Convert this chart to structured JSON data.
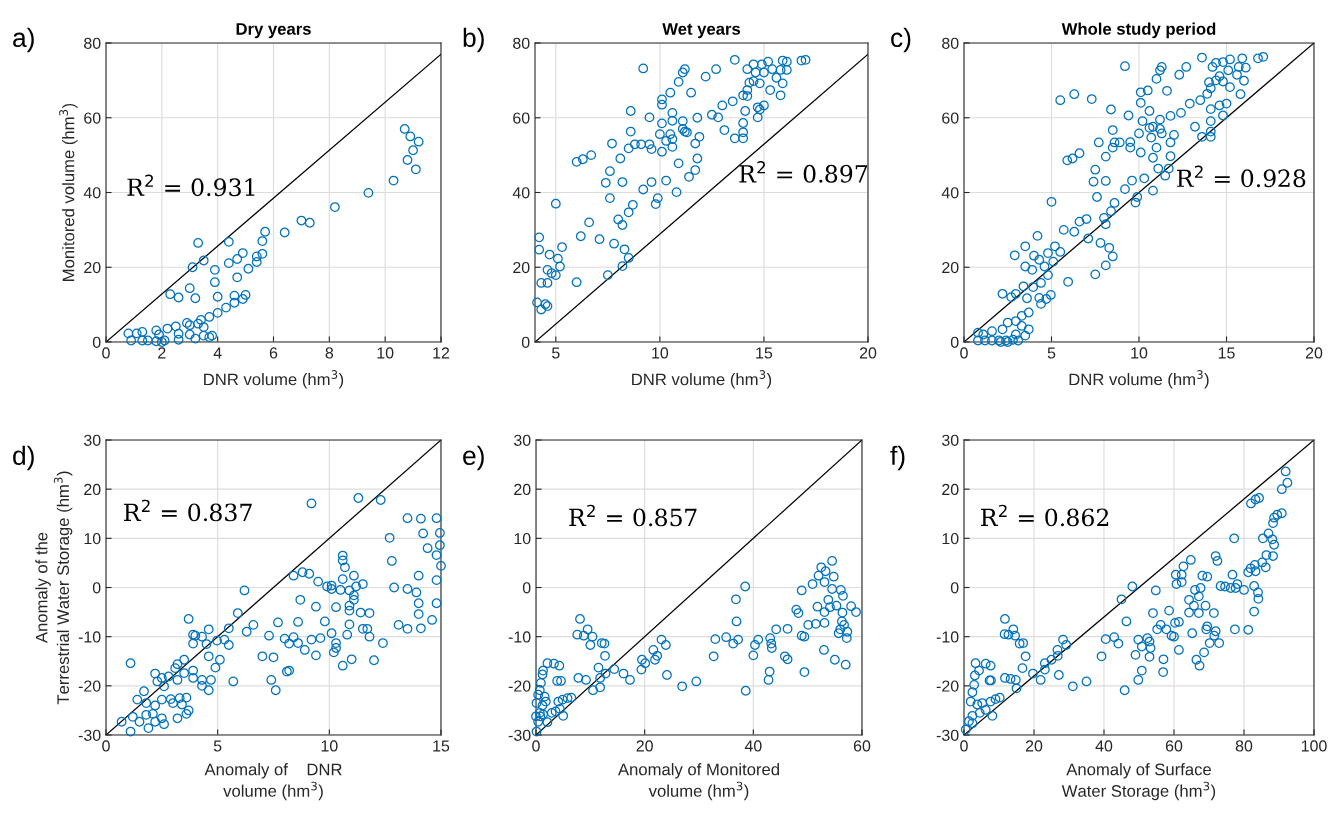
{
  "chart_data": [
    {
      "type": "scatter",
      "title": "Dry years",
      "xlabel": "DNR volume (hm$^{3}$)",
      "ylabel": "Monitored volume (hm$^{3}$)",
      "annotations": [
        "a)",
        "R$^{2}$ = 0.931"
      ],
      "xlim": [
        0,
        12
      ],
      "ylim": [
        0,
        80
      ],
      "xticks": [
        0,
        2,
        4,
        6,
        8,
        10,
        12
      ],
      "yticks": [
        0,
        20,
        40,
        60,
        80
      ],
      "grid": true,
      "series": [
        {
          "marker": "circle",
          "color": "#0072bd",
          "x": [
            10.7,
            10.9,
            11.2,
            11.0,
            10.8,
            11.1,
            10.3,
            9.4,
            8.2,
            7.0,
            7.3,
            6.4,
            5.7,
            5.6,
            5.6,
            5.4,
            5.4,
            5.1,
            4.9,
            4.7,
            4.4,
            4.4,
            4.7,
            3.9,
            3.9,
            4.0,
            4.6,
            5.0,
            4.9,
            4.6,
            4.3,
            4.0,
            3.7,
            3.3,
            3.1,
            3.5,
            3.0,
            3.2,
            2.3,
            2.6,
            3.4,
            3.3,
            2.9,
            3.0,
            3.5,
            2.5,
            2.2,
            1.8,
            1.3,
            1.1,
            0.8,
            3.0,
            3.5,
            3.8,
            2.6,
            1.9,
            0.9,
            1.3,
            1.5,
            1.8,
            2.1,
            2.6,
            3.2,
            3.7,
            2.0
          ],
          "values": [
            57,
            55,
            53.6,
            51.3,
            48.7,
            46.2,
            43.2,
            39.9,
            36.1,
            32.5,
            31.9,
            29.3,
            29.5,
            27.0,
            23.6,
            22.9,
            21.4,
            19.6,
            23.8,
            22.2,
            26.8,
            21.1,
            17.3,
            19.3,
            16.0,
            12.1,
            12.4,
            12.6,
            11.5,
            10.5,
            9.2,
            7.8,
            6.7,
            26.5,
            20.0,
            21.8,
            14.4,
            11.7,
            12.8,
            11.9,
            5.9,
            4.9,
            5.1,
            4.5,
            4.0,
            4.2,
            3.6,
            3.1,
            2.7,
            2.3,
            2.3,
            2.0,
            1.7,
            1.7,
            2.2,
            2.0,
            0.4,
            0.4,
            0.4,
            0.2,
            0.4,
            0.6,
            0.9,
            1.3,
            0.0
          ]
        },
        {
          "type": "line",
          "color": "#000000",
          "x": [
            0,
            12
          ],
          "values": [
            0,
            77
          ]
        }
      ]
    },
    {
      "type": "scatter",
      "title": "Wet years",
      "xlabel": "DNR volume (hm$^{3}$)",
      "annotations": [
        "b)",
        "R$^{2}$ = 0.897"
      ],
      "xlim": [
        4,
        20
      ],
      "ylim": [
        0,
        80
      ],
      "xticks": [
        5,
        10,
        15,
        20
      ],
      "yticks": [
        0,
        20,
        40,
        60,
        80
      ],
      "grid": true,
      "series": [
        {
          "marker": "circle",
          "color": "#0072bd",
          "x": [
            16.8,
            17.0,
            15.9,
            16.1,
            15.2,
            14.9,
            14.5,
            13.6,
            14.2,
            15.4,
            15.8,
            16.1,
            15.0,
            14.6,
            12.7,
            12.2,
            11.2,
            11.1,
            10.9,
            9.2,
            15.6,
            15.9,
            14.8,
            14.5,
            14.3,
            15.3,
            14.2,
            14.0,
            14.2,
            15.8,
            13.5,
            13.0,
            15.0,
            14.7,
            14.8,
            14.1,
            14.7,
            12.5,
            12.8,
            11.8,
            11.5,
            10.5,
            10.1,
            10.1,
            8.6,
            9.5,
            10.6,
            10.6,
            10.1,
            11.1,
            11.1,
            11.2,
            11.3,
            10.0,
            10.5,
            10.3,
            10.6,
            10.6,
            10.1,
            11.9,
            11.7,
            13.1,
            13.6,
            14.0,
            14.0,
            14.0,
            8.6,
            7.7,
            8.5,
            8.8,
            9.1,
            9.5,
            9.6,
            8.1,
            6.7,
            6.3,
            6.0,
            7.6,
            7.4,
            8.2,
            9.6,
            10.3,
            10.9,
            11.8,
            11.7,
            11.4,
            10.8,
            9.2,
            9.9,
            9.8,
            8.7,
            8.5,
            7.6,
            8.0,
            8.2,
            6.6,
            7.1,
            6.2,
            7.8,
            8.3,
            8.5,
            8.2,
            7.5,
            6.0,
            5.0,
            5.3,
            4.2,
            4.2,
            4.7,
            5.1,
            5.2,
            4.6,
            4.8,
            5.0,
            4.3,
            4.6,
            4.1,
            4.3,
            4.5,
            4.6
          ],
          "values": [
            75.3,
            75.5,
            75.3,
            75.0,
            75.0,
            74.3,
            74.3,
            75.5,
            73.0,
            73.0,
            72.8,
            72.8,
            72.1,
            72.1,
            73.0,
            71.0,
            73.0,
            72.1,
            69.6,
            73.2,
            70.7,
            69.2,
            69.2,
            69.8,
            69.4,
            67.4,
            67.4,
            66.0,
            65.8,
            66.0,
            64.4,
            63.3,
            63.3,
            62.8,
            62.2,
            61.8,
            60.1,
            60.8,
            60.1,
            60.0,
            66.7,
            66.7,
            64.9,
            63.5,
            61.8,
            60.1,
            61.3,
            59.2,
            58.5,
            59.1,
            57.0,
            56.3,
            56.1,
            55.6,
            55.6,
            53.8,
            54.3,
            52.2,
            50.9,
            54.9,
            53.1,
            56.7,
            54.5,
            56.1,
            54.5,
            58.6,
            56.3,
            53.1,
            51.8,
            52.9,
            52.9,
            52.9,
            51.6,
            49.1,
            50.0,
            48.9,
            48.2,
            45.7,
            42.6,
            42.8,
            42.8,
            43.2,
            47.8,
            49.1,
            46.0,
            44.2,
            40.1,
            40.8,
            38.5,
            36.9,
            36.7,
            34.7,
            38.5,
            32.8,
            31.3,
            32.0,
            27.5,
            28.3,
            26.3,
            24.8,
            22.5,
            20.3,
            17.9,
            16.0,
            37.0,
            25.4,
            28.0,
            24.7,
            23.4,
            22.3,
            20.2,
            19.3,
            18.4,
            17.9,
            15.8,
            15.8,
            10.6,
            8.7,
            10.1,
            9.6
          ]
        },
        {
          "type": "line",
          "color": "#000000",
          "x": [
            4,
            20
          ],
          "values": [
            0,
            77
          ]
        }
      ]
    },
    {
      "type": "scatter",
      "title": "Whole study period",
      "xlabel": "DNR volume (hm$^{3}$)",
      "annotations": [
        "c)",
        "R$^{2}$ = 0.928"
      ],
      "xlim": [
        0,
        20
      ],
      "ylim": [
        0,
        80
      ],
      "xticks": [
        0,
        5,
        10,
        15,
        20
      ],
      "yticks": [
        0,
        20,
        40,
        60,
        80
      ],
      "grid": true,
      "series": [
        {
          "marker": "circle",
          "color": "#0072bd",
          "x": [
            17.1,
            16.8,
            15.9,
            15.2,
            14.8,
            14.4,
            13.6,
            16.1,
            15.7,
            15.1,
            14.2,
            12.7,
            12.3,
            11.3,
            11.2,
            11.0,
            9.2,
            15.6,
            16.0,
            14.6,
            14.4,
            14.0,
            14.8,
            15.2,
            14.1,
            15.8,
            13.9,
            13.5,
            12.9,
            15.0,
            14.6,
            14.1,
            14.8,
            14.1,
            14.1,
            14.1,
            13.6,
            13.2,
            12.4,
            11.8,
            11.2,
            10.6,
            10.2,
            10.6,
            10.8,
            11.2,
            10.0,
            10.7,
            11.3,
            12.0,
            11.8,
            11.0,
            10.8,
            11.8,
            11.1,
            11.7,
            11.5,
            10.8,
            10.3,
            10.1,
            9.5,
            9.5,
            8.6,
            8.9,
            8.5,
            8.4,
            9.4,
            10.1,
            10.1,
            10.5,
            11.6,
            8.5,
            7.7,
            8.1,
            7.5,
            7.4,
            8.1,
            7.6,
            6.6,
            6.2,
            5.9,
            5.5,
            6.3,
            7.3,
            9.6,
            9.2,
            9.9,
            9.8,
            8.6,
            8.4,
            8.0,
            8.1,
            7.0,
            6.6,
            6.3,
            5.7,
            7.1,
            7.8,
            8.3,
            8.5,
            8.1,
            7.5,
            5.95,
            5.0,
            4.2,
            3.5,
            2.9,
            4.0,
            4.8,
            5.2,
            5.5,
            5.1,
            4.3,
            3.5,
            3.9,
            4.6,
            4.8,
            4.4,
            3.95,
            3.4,
            2.96,
            2.2,
            2.7,
            3.6,
            4.3,
            4.96,
            4.7,
            4.4,
            3.7,
            3.3,
            2.96,
            2.5,
            3.3,
            3.7,
            2.2,
            1.6,
            0.8,
            1.1,
            2.96,
            3.5,
            0.8,
            1.2,
            1.6,
            2.0,
            2.4,
            2.8,
            3.1,
            2.1,
            2.5
          ],
          "values": [
            76.3,
            75.9,
            75.9,
            75.6,
            74.9,
            74.7,
            76.1,
            73.4,
            73.6,
            72.7,
            73.6,
            73.6,
            71.5,
            73.6,
            72.7,
            70.4,
            73.8,
            71.5,
            69.9,
            71.1,
            70.0,
            69.5,
            69.7,
            68.2,
            67.9,
            66.3,
            66.4,
            64.7,
            63.8,
            63.8,
            63.3,
            62.3,
            60.6,
            59.1,
            56.3,
            54.9,
            54.9,
            57.6,
            61.3,
            60.5,
            59.5,
            61.8,
            59.1,
            57.3,
            57.6,
            57.0,
            55.8,
            54.7,
            55.8,
            55.4,
            53.4,
            52.0,
            49.3,
            49.7,
            46.4,
            46.4,
            44.5,
            40.5,
            43.8,
            50.7,
            53.5,
            52.0,
            53.4,
            53.4,
            52.0,
            62.2,
            60.6,
            66.8,
            64.0,
            67.3,
            67.2,
            56.7,
            53.4,
            49.6,
            46.1,
            42.9,
            43.1,
            38.8,
            50.5,
            49.1,
            48.6,
            64.7,
            66.3,
            65.0,
            43.2,
            40.9,
            38.8,
            37.3,
            37.2,
            35.0,
            33.2,
            31.5,
            32.9,
            32.2,
            29.5,
            30.0,
            27.7,
            26.5,
            25.2,
            22.9,
            20.5,
            18.1,
            16.1,
            37.5,
            28.4,
            25.6,
            23.2,
            23.1,
            23.8,
            25.6,
            24.1,
            21.5,
            22.0,
            20.2,
            19.3,
            20.2,
            17.9,
            15.8,
            14.7,
            14.9,
            12.9,
            12.9,
            12.0,
            11.7,
            11.8,
            12.6,
            11.5,
            10.2,
            7.9,
            7.0,
            5.6,
            5.2,
            4.3,
            3.4,
            3.4,
            2.9,
            2.5,
            2.0,
            2.0,
            1.7,
            0.4,
            0.4,
            0.4,
            0.4,
            0.4,
            0.6,
            0.4,
            0.0,
            0.0
          ]
        },
        {
          "type": "line",
          "color": "#000000",
          "x": [
            0,
            20
          ],
          "values": [
            0,
            80
          ]
        }
      ]
    },
    {
      "type": "scatter",
      "xlabel": "Anomaly of    DNR\nvolume (hm$^{3}$)",
      "ylabel": "Anomaly of the\nTerrestrial Water Storage (hm$^{3}$)",
      "annotations": [
        "d)",
        "R$^{2}$ = 0.837"
      ],
      "xlim": [
        0,
        15
      ],
      "ylim": [
        -30,
        30
      ],
      "xticks": [
        0,
        5,
        10,
        15
      ],
      "yticks": [
        -30,
        -20,
        -10,
        0,
        10,
        20,
        30
      ],
      "grid": true,
      "series": [
        {
          "marker": "circle",
          "color": "#0072bd",
          "x": [
            14.8,
            14.1,
            14.95,
            14.4,
            14.95,
            14.8,
            15.0,
            14.8,
            14.8,
            14.6,
            9.2,
            11.3,
            12.3,
            13.5,
            14.2,
            12.7,
            12.8,
            10.6,
            10.6,
            10.7,
            11.1,
            10.6,
            11.5,
            14.0,
            12.9,
            13.5,
            13.9,
            14.0,
            14.0,
            14.1,
            13.1,
            13.5,
            8.4,
            8.8,
            9.1,
            9.5,
            9.9,
            10.1,
            10.1,
            10.5,
            10.9,
            11.2,
            11.1,
            11.1,
            10.9,
            10.9,
            10.3,
            11.4,
            11.8,
            8.7,
            9.4,
            9.8,
            10.9,
            11.5,
            11.7,
            11.8,
            12.4,
            10.8,
            10.1,
            10.3,
            10.3,
            10.2,
            11.0,
            10.6,
            12.0,
            9.2,
            9.6,
            8.9,
            8.4,
            8.6,
            8.2,
            8.0,
            8.6,
            7.7,
            7.3,
            6.6,
            6.3,
            7.0,
            7.5,
            8.1,
            8.2,
            7.4,
            7.6,
            9.4,
            6.2,
            5.9,
            5.5,
            5.3,
            5.5,
            5.1,
            4.97,
            4.6,
            4.6,
            4.9,
            4.7,
            4.6,
            4.3,
            4.3,
            5.7,
            3.7,
            3.9,
            4.0,
            4.3,
            3.9,
            4.5,
            3.9,
            3.9,
            3.5,
            3.2,
            3.1,
            3.5,
            3.2,
            2.8,
            2.6,
            2.3,
            2.2,
            2.5,
            1.1,
            1.7,
            1.4,
            1.8,
            2.2,
            2.5,
            2.9,
            3.0,
            3.4,
            3.3,
            3.6,
            3.7,
            3.6,
            3.2,
            2.5,
            2.1,
            1.8,
            1.5,
            1.2,
            1.9,
            1.1,
            0.7,
            2.6,
            2.2
          ],
          "values": [
            14.1,
            14.0,
            11.1,
            8.0,
            8.6,
            6.6,
            4.4,
            1.5,
            -3.2,
            -6.6,
            17.1,
            18.2,
            17.8,
            14.1,
            11.0,
            10.1,
            5.4,
            6.5,
            5.5,
            4.1,
            2.4,
            1.7,
            0.7,
            2.4,
            0.0,
            -0.3,
            -1.0,
            -3.2,
            -5.4,
            -8.3,
            -7.6,
            -8.4,
            2.4,
            3.1,
            2.8,
            1.2,
            0.2,
            0.4,
            -0.3,
            -0.5,
            -0.6,
            0.2,
            -1.6,
            -2.5,
            -3.7,
            -4.7,
            -4.0,
            -5.1,
            -5.2,
            -2.5,
            -3.9,
            -6.9,
            -7.5,
            -8.4,
            -8.4,
            -10.0,
            -11.3,
            -9.6,
            -9.3,
            -11.3,
            -12.3,
            -13.2,
            -14.6,
            -15.9,
            -14.8,
            -10.6,
            -10.3,
            -12.7,
            -10.1,
            -11.3,
            -11.4,
            -10.4,
            -7.0,
            -7.1,
            -9.8,
            -7.6,
            -9.0,
            -14.0,
            -14.2,
            -17.1,
            -16.9,
            -18.8,
            -20.9,
            -13.8,
            -0.6,
            -5.2,
            -8.3,
            -10.6,
            -11.7,
            -14.7,
            -10.8,
            -8.5,
            -14.0,
            -16.3,
            -18.8,
            -20.9,
            -20.0,
            -18.8,
            -19.1,
            -6.4,
            -9.6,
            -9.8,
            -10.0,
            -11.4,
            -11.5,
            -16.9,
            -18.4,
            -14.7,
            -15.6,
            -16.4,
            -17.4,
            -18.8,
            -18.1,
            -20.1,
            -19.1,
            -17.5,
            -18.4,
            -15.4,
            -21.1,
            -22.8,
            -23.5,
            -24.0,
            -22.8,
            -22.7,
            -23.5,
            -23.8,
            -22.5,
            -22.4,
            -25.0,
            -25.7,
            -26.6,
            -26.6,
            -25.7,
            -25.9,
            -27.3,
            -26.3,
            -28.6,
            -29.3,
            -27.3,
            -27.8,
            -27.3
          ]
        },
        {
          "type": "line",
          "color": "#000000",
          "x": [
            0,
            15
          ],
          "values": [
            -30,
            30
          ]
        }
      ]
    },
    {
      "type": "scatter",
      "xlabel": "Anomaly of Monitored\nvolume (hm$^{3}$)",
      "annotations": [
        "e)",
        "R$^{2}$ = 0.857"
      ],
      "xlim": [
        0,
        60
      ],
      "ylim": [
        -30,
        30
      ],
      "xticks": [
        0,
        20,
        40,
        60
      ],
      "yticks": [
        -30,
        -20,
        -10,
        0,
        10,
        20,
        30
      ],
      "grid": true,
      "series": [
        {
          "marker": "circle",
          "color": "#0072bd",
          "x": [
            58.9,
            58.0,
            57.3,
            54.5,
            52.5,
            53.3,
            52.0,
            53.1,
            54.8,
            50.9,
            48.9,
            54.5,
            56.1,
            56.5,
            53.8,
            55.3,
            54.1,
            53.1,
            51.8,
            56.4,
            47.9,
            48.3,
            50.1,
            51.5,
            53.1,
            56.3,
            56.7,
            56.0,
            55.7,
            57.2,
            48.9,
            49.4,
            53.0,
            55.0,
            57.0,
            49.4,
            46.3,
            44.2,
            45.8,
            46.3,
            43.1,
            43.3,
            43.4,
            43.0,
            42.8,
            40.9,
            40.3,
            40.0,
            38.5,
            36.8,
            36.9,
            37.2,
            36.3,
            35.0,
            33.0,
            32.7,
            38.6,
            29.5,
            26.9,
            24.1,
            23.1,
            23.9,
            21.6,
            22.3,
            21.9,
            19.5,
            20.1,
            19.4,
            17.3,
            16.1,
            14.4,
            12.8,
            11.8,
            11.8,
            10.5,
            11.5,
            12.7,
            12.1,
            12.6,
            10.0,
            10.4,
            9.5,
            8.8,
            7.6,
            8.1,
            7.8,
            9.2,
            6.5,
            5.8,
            4.9,
            4.1,
            5.0,
            4.4,
            3.6,
            2.9,
            2.1,
            1.3,
            4.3,
            3.3,
            2.1,
            3.9,
            4.6,
            1.3,
            1.2,
            0.9,
            0.7,
            0.4,
            1.6,
            1.8,
            0.1,
            1.2,
            0.7,
            0.0,
            0.4,
            0.1,
            0.8
          ],
          "values": [
            -5.0,
            -3.8,
            -9.0,
            5.4,
            4.1,
            3.3,
            2.4,
            1.1,
            2.2,
            0.7,
            -0.6,
            -0.3,
            -0.5,
            -1.7,
            -2.5,
            -3.7,
            -4.0,
            -5.0,
            -3.9,
            -5.1,
            -4.5,
            -5.2,
            -7.6,
            -7.4,
            -7.2,
            -6.9,
            -7.6,
            -8.5,
            -9.3,
            -10.3,
            -9.8,
            -10.0,
            -12.7,
            -14.7,
            -15.7,
            -17.2,
            -8.4,
            -8.5,
            -14.0,
            -14.6,
            -10.3,
            -11.4,
            -12.3,
            -17.1,
            -18.8,
            -10.6,
            -11.7,
            -13.8,
            0.2,
            -2.4,
            -6.9,
            -10.6,
            -11.4,
            -10.1,
            -10.5,
            -14.0,
            -21.0,
            -19.1,
            -20.1,
            -17.8,
            -10.6,
            -11.7,
            -12.7,
            -13.9,
            -14.7,
            -14.7,
            -15.4,
            -16.7,
            -18.8,
            -17.5,
            -16.6,
            -17.5,
            -18.4,
            -20.3,
            -20.9,
            -16.3,
            -13.9,
            -11.3,
            -11.4,
            -11.7,
            -10.0,
            -8.5,
            -9.8,
            -9.6,
            -6.4,
            -18.4,
            -18.8,
            -22.4,
            -22.5,
            -22.8,
            -23.2,
            -26.1,
            -24.7,
            -25.2,
            -25.5,
            -27.4,
            -25.8,
            -15.9,
            -15.5,
            -15.4,
            -19.0,
            -19.0,
            -16.9,
            -17.7,
            -19.4,
            -20.9,
            -21.8,
            -22.2,
            -23.2,
            -23.5,
            -24.0,
            -25.5,
            -26.2,
            -27.3,
            -29.3,
            -26.2
          ]
        },
        {
          "type": "line",
          "color": "#000000",
          "x": [
            0,
            60
          ],
          "values": [
            -30,
            30
          ]
        }
      ]
    },
    {
      "type": "scatter",
      "xlabel": "Anomaly of Surface\nWater Storage (hm$^{3}$)",
      "annotations": [
        "f)",
        "R$^{2}$ = 0.862"
      ],
      "xlim": [
        0,
        100
      ],
      "ylim": [
        -30,
        30
      ],
      "xticks": [
        0,
        20,
        40,
        60,
        80,
        100
      ],
      "yticks": [
        -30,
        -20,
        -10,
        0,
        10,
        20,
        30
      ],
      "grid": true,
      "series": [
        {
          "marker": "circle",
          "color": "#0072bd",
          "x": [
            91.9,
            92.4,
            90.8,
            82.0,
            83.3,
            84.3,
            90.8,
            89.5,
            88.6,
            88.3,
            87.0,
            85.4,
            77.2,
            88.1,
            88.6,
            86.4,
            88.3,
            85.2,
            83.1,
            81.9,
            81.2,
            83.3,
            86.2,
            71.9,
            72.4,
            76.7,
            78.1,
            74.6,
            76.2,
            73.3,
            77.6,
            80.0,
            82.9,
            84.0,
            84.1,
            82.9,
            77.4,
            81.2,
            64.8,
            62.7,
            60.5,
            62.2,
            62.2,
            60.7,
            68.1,
            69.5,
            66.0,
            67.6,
            67.1,
            64.3,
            65.7,
            64.3,
            69.0,
            71.4,
            67.1,
            69.5,
            69.2,
            71.9,
            71.5,
            72.9,
            70.2,
            68.6,
            66.4,
            67.3,
            65.2,
            61.4,
            60.3,
            60.0,
            59.3,
            61.4,
            58.6,
            54.8,
            54.0,
            56.2,
            57.8,
            55.2,
            57.0,
            56.9,
            52.4,
            53.0,
            53.3,
            53.0,
            49.8,
            50.8,
            49.0,
            50.8,
            49.8,
            48.1,
            45.0,
            46.4,
            44.1,
            42.9,
            40.5,
            39.3,
            45.9,
            35.0,
            31.1,
            27.1,
            28.3,
            29.2,
            26.7,
            26.8,
            25.0,
            23.1,
            23.1,
            21.9,
            19.7,
            17.6,
            16.7,
            14.8,
            15.0,
            13.3,
            11.7,
            14.6,
            14.1,
            12.7,
            11.6,
            16.9,
            15.9,
            11.7,
            7.6,
            6.2,
            3.3,
            4.3,
            3.1,
            2.9,
            2.4,
            7.3,
            7.7,
            10.2,
            9.0,
            7.6,
            5.2,
            3.8,
            1.9,
            8.1,
            6.2,
            4.5,
            2.4,
            1.4,
            2.4,
            0.5
          ],
          "values": [
            23.6,
            21.3,
            20.0,
            17.1,
            17.9,
            18.2,
            15.1,
            14.8,
            14.2,
            13.1,
            11.0,
            10.0,
            10.0,
            9.8,
            8.7,
            6.6,
            6.4,
            5.1,
            4.6,
            3.9,
            3.1,
            3.3,
            4.1,
            6.4,
            5.4,
            2.6,
            0.7,
            0.2,
            -0.1,
            0.3,
            -0.1,
            -0.5,
            0.3,
            -1.0,
            -2.3,
            -4.9,
            -8.5,
            -8.6,
            5.6,
            4.3,
            2.6,
            2.6,
            1.1,
            0.7,
            2.4,
            2.2,
            -0.5,
            -0.1,
            -1.8,
            -2.5,
            -3.7,
            -5.1,
            -3.7,
            -5.2,
            -5.2,
            -7.9,
            -8.5,
            -8.9,
            -9.8,
            -11.3,
            -11.3,
            -13.2,
            -14.7,
            -15.9,
            -9.3,
            -7.0,
            -7.2,
            -10.0,
            -9.8,
            -12.7,
            -4.7,
            -0.6,
            -5.2,
            -7.6,
            -8.5,
            -8.5,
            -14.6,
            -17.2,
            -10.3,
            -11.0,
            -12.3,
            -14.1,
            -10.6,
            -12.0,
            -13.7,
            -16.9,
            -18.8,
            0.2,
            -2.4,
            -6.9,
            -11.4,
            -10.1,
            -10.5,
            -14.0,
            -20.9,
            -19.1,
            -20.1,
            -17.8,
            -10.6,
            -11.7,
            -12.7,
            -13.9,
            -14.7,
            -15.4,
            -16.7,
            -18.8,
            -17.5,
            -14.0,
            -16.4,
            -18.8,
            -20.5,
            -18.6,
            -18.4,
            -9.8,
            -8.5,
            -9.6,
            -9.5,
            -11.3,
            -11.4,
            -6.4,
            -15.9,
            -15.5,
            -15.4,
            -16.9,
            -17.9,
            -19.8,
            -21.3,
            -18.9,
            -18.9,
            -22.4,
            -22.7,
            -23.2,
            -23.5,
            -23.8,
            -23.2,
            -26.1,
            -24.9,
            -25.5,
            -26.1,
            -27.2,
            -27.6,
            -28.9
          ]
        },
        {
          "type": "line",
          "color": "#000000",
          "x": [
            0,
            100
          ],
          "values": [
            -30,
            30
          ]
        }
      ]
    }
  ]
}
